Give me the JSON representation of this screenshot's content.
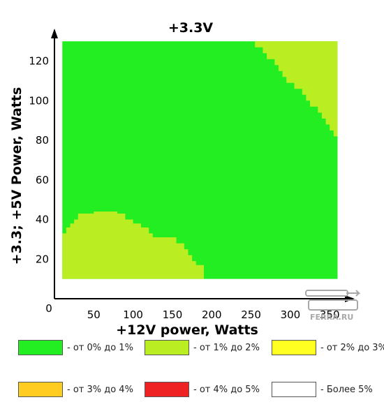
{
  "chart_data": {
    "type": "heatmap",
    "title": "+3.3V",
    "xlabel": "+12V power, Watts",
    "ylabel": "+3.3; +5V Power, Watts",
    "xlim": [
      0,
      380
    ],
    "ylim": [
      0,
      135
    ],
    "x_data_range": [
      10,
      360
    ],
    "y_data_range": [
      10,
      130
    ],
    "x_ticks": [
      0,
      50,
      100,
      150,
      200,
      250,
      300,
      350
    ],
    "y_ticks": [
      20,
      40,
      60,
      80,
      100,
      120
    ],
    "origin_label": "0",
    "background_level": "0-1",
    "regions": [
      {
        "level": "1-2",
        "description_points": [
          [
            10,
            10
          ],
          [
            10,
            33
          ],
          [
            15,
            33
          ],
          [
            15,
            36
          ],
          [
            20,
            36
          ],
          [
            20,
            38
          ],
          [
            25,
            38
          ],
          [
            25,
            40
          ],
          [
            30,
            40
          ],
          [
            30,
            43
          ],
          [
            50,
            43
          ],
          [
            50,
            44
          ],
          [
            80,
            44
          ],
          [
            80,
            43
          ],
          [
            90,
            43
          ],
          [
            90,
            40
          ],
          [
            100,
            40
          ],
          [
            100,
            38
          ],
          [
            110,
            38
          ],
          [
            110,
            36
          ],
          [
            120,
            36
          ],
          [
            120,
            33
          ],
          [
            125,
            33
          ],
          [
            125,
            31
          ],
          [
            155,
            31
          ],
          [
            155,
            28
          ],
          [
            165,
            28
          ],
          [
            165,
            25
          ],
          [
            170,
            25
          ],
          [
            170,
            22
          ],
          [
            175,
            22
          ],
          [
            175,
            19
          ],
          [
            180,
            19
          ],
          [
            180,
            17
          ],
          [
            190,
            17
          ],
          [
            190,
            10
          ]
        ]
      },
      {
        "level": "1-2",
        "description_points": [
          [
            255,
            130
          ],
          [
            255,
            127
          ],
          [
            265,
            127
          ],
          [
            265,
            124
          ],
          [
            270,
            124
          ],
          [
            270,
            121
          ],
          [
            280,
            121
          ],
          [
            280,
            118
          ],
          [
            285,
            118
          ],
          [
            285,
            115
          ],
          [
            290,
            115
          ],
          [
            290,
            112
          ],
          [
            295,
            112
          ],
          [
            295,
            109
          ],
          [
            305,
            109
          ],
          [
            305,
            106
          ],
          [
            315,
            106
          ],
          [
            315,
            103
          ],
          [
            320,
            103
          ],
          [
            320,
            100
          ],
          [
            325,
            100
          ],
          [
            325,
            97
          ],
          [
            335,
            97
          ],
          [
            335,
            94
          ],
          [
            340,
            94
          ],
          [
            340,
            91
          ],
          [
            345,
            91
          ],
          [
            345,
            88
          ],
          [
            350,
            88
          ],
          [
            350,
            85
          ],
          [
            355,
            85
          ],
          [
            355,
            82
          ],
          [
            360,
            82
          ],
          [
            360,
            130
          ]
        ]
      }
    ]
  },
  "legend": [
    {
      "label": "- от 0% до 1%",
      "color": "#22ee22"
    },
    {
      "label": "- от 1% до 2%",
      "color": "#bbee22"
    },
    {
      "label": "- от 2% до 3%",
      "color": "#ffff22"
    },
    {
      "label": "- от 3% до 4%",
      "color": "#ffcc22"
    },
    {
      "label": "- от 4% до 5%",
      "color": "#ee2222"
    },
    {
      "label": "- Более 5%",
      "color": "#ffffff"
    }
  ],
  "colors": {
    "level_0_1": "#22ee22",
    "level_1_2": "#bbee22"
  },
  "watermark": {
    "text": "FERRA.RU"
  }
}
